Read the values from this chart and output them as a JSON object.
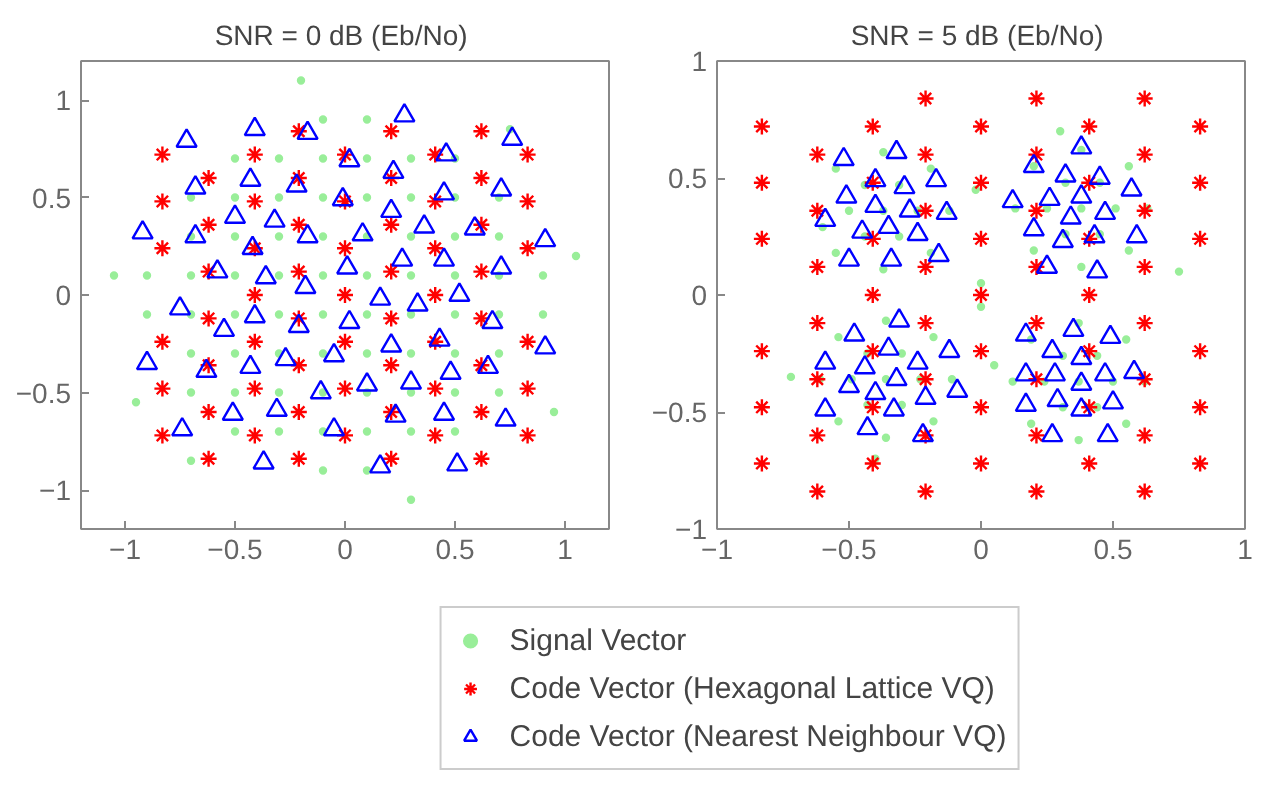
{
  "chart_data": [
    {
      "type": "scatter",
      "title": "SNR = 0 dB  (Eb/No)",
      "xlim": [
        -1.2,
        1.2
      ],
      "ylim": [
        -1.2,
        1.2
      ],
      "xticks": [
        -1,
        -0.5,
        0,
        0.5,
        1
      ],
      "yticks": [
        -1,
        -0.5,
        0,
        0.5,
        1
      ],
      "grid": false,
      "legend": "bottom",
      "series": [
        {
          "name": "Signal Vector",
          "color": "#99ee99",
          "marker": "circle",
          "x": [
            -0.1,
            0.1,
            -0.5,
            -0.3,
            -0.1,
            0.1,
            0.3,
            0.5,
            -0.7,
            -0.5,
            -0.3,
            -0.1,
            0.1,
            0.3,
            0.5,
            0.7,
            -0.7,
            -0.5,
            -0.3,
            -0.1,
            0.1,
            0.3,
            0.5,
            0.7,
            -0.9,
            -0.7,
            -0.5,
            -0.3,
            -0.1,
            0.1,
            0.3,
            0.5,
            0.7,
            0.9,
            -0.9,
            -0.7,
            -0.5,
            -0.3,
            -0.1,
            0.1,
            0.3,
            0.5,
            0.7,
            0.9,
            -0.7,
            -0.5,
            -0.3,
            -0.1,
            0.1,
            0.3,
            0.5,
            0.7,
            -0.7,
            -0.5,
            -0.3,
            -0.1,
            0.1,
            0.3,
            0.5,
            0.7,
            -0.5,
            -0.3,
            -0.1,
            0.1,
            0.3,
            0.5,
            -0.1,
            0.1,
            -1.05,
            0.95,
            -0.2,
            0.3,
            1.05,
            -0.95,
            0.75,
            -0.7
          ],
          "values": [
            0.9,
            0.9,
            0.7,
            0.7,
            0.7,
            0.7,
            0.7,
            0.7,
            0.5,
            0.5,
            0.5,
            0.5,
            0.5,
            0.5,
            0.5,
            0.5,
            0.3,
            0.3,
            0.3,
            0.3,
            0.3,
            0.3,
            0.3,
            0.3,
            0.1,
            0.1,
            0.1,
            0.1,
            0.1,
            0.1,
            0.1,
            0.1,
            0.1,
            0.1,
            -0.1,
            -0.1,
            -0.1,
            -0.1,
            -0.1,
            -0.1,
            -0.1,
            -0.1,
            -0.1,
            -0.1,
            -0.3,
            -0.3,
            -0.3,
            -0.3,
            -0.3,
            -0.3,
            -0.3,
            -0.3,
            -0.5,
            -0.5,
            -0.5,
            -0.5,
            -0.5,
            -0.5,
            -0.5,
            -0.5,
            -0.7,
            -0.7,
            -0.7,
            -0.7,
            -0.7,
            -0.7,
            -0.9,
            -0.9,
            0.1,
            -0.6,
            1.1,
            -1.05,
            0.2,
            -0.55,
            0.85,
            -0.85
          ]
        },
        {
          "name": "Code Vector (Hexagonal Lattice VQ)",
          "color": "#ff0000",
          "marker": "cross",
          "x": [
            -0.83,
            -0.83,
            -0.83,
            -0.83,
            -0.83,
            -0.83,
            -0.62,
            -0.62,
            -0.62,
            -0.62,
            -0.62,
            -0.62,
            -0.62,
            -0.41,
            -0.41,
            -0.41,
            -0.41,
            -0.41,
            -0.41,
            -0.41,
            -0.21,
            -0.21,
            -0.21,
            -0.21,
            -0.21,
            -0.21,
            -0.21,
            -0.21,
            0,
            0,
            0,
            0,
            0,
            0,
            0,
            0.21,
            0.21,
            0.21,
            0.21,
            0.21,
            0.21,
            0.21,
            0.21,
            0.41,
            0.41,
            0.41,
            0.41,
            0.41,
            0.41,
            0.41,
            0.62,
            0.62,
            0.62,
            0.62,
            0.62,
            0.62,
            0.62,
            0.62,
            0.83,
            0.83,
            0.83,
            0.83,
            0.83,
            0.83
          ],
          "values": [
            0.72,
            0.48,
            0.24,
            -0.24,
            -0.48,
            -0.72,
            0.6,
            0.36,
            0.12,
            -0.12,
            -0.36,
            -0.6,
            -0.84,
            0.72,
            0.48,
            0.24,
            0,
            -0.24,
            -0.48,
            -0.72,
            0.84,
            0.6,
            0.36,
            0.12,
            -0.12,
            -0.36,
            -0.6,
            -0.84,
            0.72,
            0.48,
            0.24,
            0,
            -0.24,
            -0.48,
            -0.72,
            0.84,
            0.6,
            0.36,
            0.12,
            -0.12,
            -0.36,
            -0.6,
            -0.84,
            0.72,
            0.48,
            0.24,
            0,
            -0.24,
            -0.48,
            -0.72,
            0.84,
            0.6,
            0.36,
            0.12,
            -0.12,
            -0.36,
            -0.6,
            -0.84,
            0.72,
            0.48,
            0.24,
            -0.24,
            -0.48,
            -0.72
          ]
        },
        {
          "name": "Code Vector (Nearest Neighbour VQ)",
          "color": "#0000ff",
          "marker": "triangle",
          "x": [
            -0.72,
            -0.41,
            -0.17,
            0.27,
            0.46,
            0.76,
            0.02,
            0.22,
            -0.68,
            -0.43,
            -0.22,
            -0.01,
            0.45,
            0.71,
            -0.5,
            -0.32,
            0.21,
            0.36,
            0.59,
            -0.92,
            -0.68,
            -0.17,
            0.08,
            0.91,
            -0.42,
            0.26,
            0.45,
            0.01,
            -0.58,
            -0.36,
            0.71,
            -0.18,
            0.16,
            0.33,
            0.52,
            -0.75,
            -0.41,
            0.02,
            -0.21,
            -0.55,
            0.43,
            0.67,
            0.21,
            0.91,
            -0.9,
            -0.27,
            -0.05,
            -0.63,
            -0.43,
            0.48,
            0.65,
            0.1,
            0.3,
            -0.11,
            -0.51,
            -0.31,
            0.23,
            0.45,
            0.73,
            -0.74,
            -0.05,
            -0.37,
            0.16,
            0.51
          ],
          "values": [
            0.79,
            0.85,
            0.83,
            0.92,
            0.72,
            0.8,
            0.69,
            0.63,
            0.55,
            0.59,
            0.56,
            0.49,
            0.52,
            0.54,
            0.4,
            0.38,
            0.43,
            0.35,
            0.34,
            0.32,
            0.3,
            0.3,
            0.31,
            0.28,
            0.24,
            0.18,
            0.18,
            0.14,
            0.12,
            0.09,
            0.14,
            0.04,
            -0.02,
            -0.05,
            0,
            -0.07,
            -0.11,
            -0.14,
            -0.16,
            -0.18,
            -0.23,
            -0.14,
            -0.26,
            -0.27,
            -0.35,
            -0.33,
            -0.31,
            -0.39,
            -0.37,
            -0.4,
            -0.37,
            -0.46,
            -0.45,
            -0.5,
            -0.61,
            -0.59,
            -0.62,
            -0.61,
            -0.64,
            -0.69,
            -0.69,
            -0.86,
            -0.88,
            -0.87
          ]
        }
      ]
    },
    {
      "type": "scatter",
      "title": "SNR = 5 dB  (Eb/No)",
      "xlim": [
        -1,
        1
      ],
      "ylim": [
        -1,
        1
      ],
      "xticks": [
        -1,
        -0.5,
        0,
        0.5,
        1
      ],
      "yticks": [
        -1,
        -0.5,
        0,
        0.5,
        1
      ],
      "grid": false,
      "series": [
        {
          "color": "#99ee99",
          "marker": "circle",
          "x": [
            -0.37,
            -0.24,
            -0.31,
            -0.44,
            -0.5,
            -0.44,
            -0.31,
            -0.12,
            -0.19,
            -0.37,
            -0.55,
            -0.6,
            -0.55,
            -0.37,
            -0.19,
            0.38,
            0.51,
            0.45,
            0.32,
            0.25,
            0.32,
            0.45,
            0.63,
            0.56,
            0.38,
            0.2,
            0.13,
            0.2,
            0.38,
            0.56,
            -0.36,
            -0.23,
            -0.3,
            -0.43,
            -0.49,
            -0.43,
            -0.3,
            -0.11,
            -0.18,
            -0.36,
            -0.54,
            -0.61,
            -0.54,
            -0.36,
            -0.18,
            0.37,
            0.5,
            0.44,
            0.31,
            0.24,
            0.31,
            0.44,
            0.62,
            0.55,
            0.37,
            0.19,
            0.12,
            0.19,
            0.37,
            0.55,
            0,
            0.05,
            -0.02,
            0.75,
            -0.72,
            0.3,
            -0.4,
            0
          ],
          "values": [
            0.36,
            0.36,
            0.47,
            0.47,
            0.36,
            0.25,
            0.25,
            0.36,
            0.54,
            0.61,
            0.54,
            0.29,
            0.18,
            0.11,
            0.18,
            0.37,
            0.37,
            0.48,
            0.48,
            0.37,
            0.26,
            0.26,
            0.37,
            0.55,
            0.62,
            0.55,
            0.37,
            0.19,
            0.12,
            0.19,
            -0.36,
            -0.36,
            -0.25,
            -0.25,
            -0.36,
            -0.47,
            -0.47,
            -0.36,
            -0.18,
            -0.11,
            -0.18,
            -0.36,
            -0.54,
            -0.61,
            -0.54,
            -0.37,
            -0.37,
            -0.26,
            -0.26,
            -0.37,
            -0.48,
            -0.48,
            -0.37,
            -0.19,
            -0.12,
            -0.19,
            -0.37,
            -0.55,
            -0.62,
            -0.55,
            0.05,
            -0.3,
            0.45,
            0.1,
            -0.35,
            0.7,
            -0.7,
            -0.05
          ]
        },
        {
          "color": "#ff0000",
          "marker": "cross",
          "x": [
            -0.83,
            -0.83,
            -0.83,
            -0.83,
            -0.83,
            -0.83,
            -0.62,
            -0.62,
            -0.62,
            -0.62,
            -0.62,
            -0.62,
            -0.62,
            -0.41,
            -0.41,
            -0.41,
            -0.41,
            -0.41,
            -0.41,
            -0.41,
            -0.21,
            -0.21,
            -0.21,
            -0.21,
            -0.21,
            -0.21,
            -0.21,
            -0.21,
            0,
            0,
            0,
            0,
            0,
            0,
            0,
            0.21,
            0.21,
            0.21,
            0.21,
            0.21,
            0.21,
            0.21,
            0.21,
            0.41,
            0.41,
            0.41,
            0.41,
            0.41,
            0.41,
            0.41,
            0.62,
            0.62,
            0.62,
            0.62,
            0.62,
            0.62,
            0.62,
            0.62,
            0.83,
            0.83,
            0.83,
            0.83,
            0.83,
            0.83
          ],
          "values": [
            0.72,
            0.48,
            0.24,
            -0.24,
            -0.48,
            -0.72,
            0.6,
            0.36,
            0.12,
            -0.12,
            -0.36,
            -0.6,
            -0.84,
            0.72,
            0.48,
            0.24,
            0,
            -0.24,
            -0.48,
            -0.72,
            0.84,
            0.6,
            0.36,
            0.12,
            -0.12,
            -0.36,
            -0.6,
            -0.84,
            0.72,
            0.48,
            0.24,
            0,
            -0.24,
            -0.48,
            -0.72,
            0.84,
            0.6,
            0.36,
            0.12,
            -0.12,
            -0.36,
            -0.6,
            -0.84,
            0.72,
            0.48,
            0.24,
            0,
            -0.24,
            -0.48,
            -0.72,
            0.84,
            0.6,
            0.36,
            0.12,
            -0.12,
            -0.36,
            -0.6,
            -0.84,
            0.72,
            0.48,
            0.24,
            -0.24,
            -0.48,
            -0.72
          ]
        },
        {
          "color": "#0000ff",
          "marker": "triangle",
          "x": [
            -0.32,
            -0.52,
            -0.4,
            -0.29,
            -0.17,
            -0.51,
            -0.4,
            -0.27,
            -0.13,
            -0.59,
            -0.35,
            -0.45,
            -0.24,
            -0.5,
            -0.34,
            -0.16,
            0.38,
            0.2,
            0.32,
            0.45,
            0.57,
            0.12,
            0.26,
            0.38,
            0.47,
            0.34,
            0.2,
            0.43,
            0.59,
            0.31,
            0.25,
            0.44,
            -0.31,
            -0.48,
            -0.35,
            -0.12,
            -0.59,
            -0.44,
            -0.24,
            -0.32,
            -0.5,
            -0.4,
            -0.21,
            -0.09,
            -0.59,
            -0.33,
            -0.43,
            -0.22,
            0.35,
            0.17,
            0.49,
            0.27,
            0.38,
            0.17,
            0.28,
            0.47,
            0.58,
            0.38,
            0.29,
            0.5,
            0.17,
            0.38,
            0.27,
            0.48
          ],
          "values": [
            0.61,
            0.58,
            0.49,
            0.46,
            0.49,
            0.42,
            0.38,
            0.36,
            0.35,
            0.32,
            0.29,
            0.27,
            0.26,
            0.15,
            0.15,
            0.17,
            0.63,
            0.55,
            0.51,
            0.5,
            0.45,
            0.4,
            0.41,
            0.42,
            0.35,
            0.33,
            0.28,
            0.25,
            0.25,
            0.23,
            0.12,
            0.1,
            -0.11,
            -0.17,
            -0.23,
            -0.24,
            -0.29,
            -0.31,
            -0.29,
            -0.36,
            -0.39,
            -0.42,
            -0.44,
            -0.41,
            -0.49,
            -0.49,
            -0.57,
            -0.6,
            -0.15,
            -0.17,
            -0.18,
            -0.24,
            -0.27,
            -0.34,
            -0.34,
            -0.34,
            -0.33,
            -0.38,
            -0.45,
            -0.46,
            -0.47,
            -0.49,
            -0.6,
            -0.6
          ]
        }
      ]
    }
  ]
}
